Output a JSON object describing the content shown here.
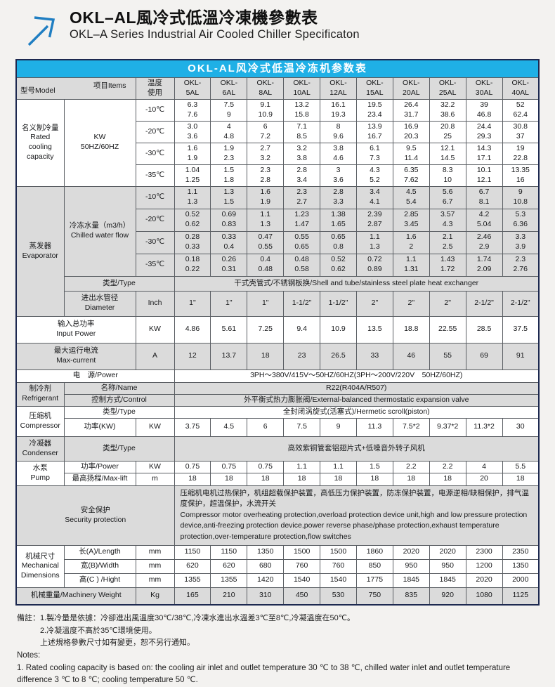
{
  "header": {
    "title_zh": "OKL–AL風冷式低溫冷凍機參數表",
    "title_en": "OKL–A Series Industrial Air Cooled Chiller Specificaton"
  },
  "colors": {
    "accent": "#1fb0e6",
    "band_gray": "#dbdbdb",
    "frame_navy": "#1d2950",
    "arrow_blue": "#1f7ec2"
  },
  "icons": {
    "logo": "arrow-up-right-icon"
  },
  "table": {
    "title": "OKL-AL风冷式低温冷冻机参数表",
    "corner": {
      "model": "型号Model",
      "items": "项目Items"
    },
    "temp_header": "温度\n使用",
    "models": [
      "OKL-\n5AL",
      "OKL-\n6AL",
      "OKL-\n8AL",
      "OKL-\n10AL",
      "OKL-\n12AL",
      "OKL-\n15AL",
      "OKL-\n20AL",
      "OKL-\n25AL",
      "OKL-\n30AL",
      "OKL-\n40AL"
    ],
    "rows": [
      {
        "h": 31,
        "band": "w",
        "cells": [
          {
            "t": "名义制冷量\nRated\ncooling\ncapacity",
            "r": 4,
            "n": "section-label"
          },
          {
            "t": "KW\n50HZ/60HZ",
            "r": 4,
            "n": "item-label"
          },
          {
            "t": "-10℃",
            "n": "temp-cell"
          },
          "6.3\n7.6",
          "7.5\n9",
          "9.1\n10.9",
          "13.2\n15.8",
          "16.1\n19.3",
          "19.5\n23.4",
          "26.4\n31.7",
          "32.2\n38.6",
          "39\n46.8",
          "52\n62.4"
        ]
      },
      {
        "h": 31,
        "band": "w",
        "cells": [
          {
            "t": "-20℃",
            "n": "temp-cell"
          },
          "3.0\n3.6",
          "4\n4.8",
          "6\n7.2",
          "7.1\n8.5",
          "8\n9.6",
          "13.9\n16.7",
          "16.9\n20.3",
          "20.8\n25",
          "24.4\n29.3",
          "30.8\n37"
        ]
      },
      {
        "h": 31,
        "band": "w",
        "cells": [
          {
            "t": "-30℃",
            "n": "temp-cell"
          },
          "1.6\n1.9",
          "1.9\n2.3",
          "2.7\n3.2",
          "3.2\n3.8",
          "3.8\n4.6",
          "6.1\n7.3",
          "9.5\n11.4",
          "12.1\n14.5",
          "14.3\n17.1",
          "19\n22.8"
        ]
      },
      {
        "h": 31,
        "band": "w",
        "cells": [
          {
            "t": "-35℃",
            "n": "temp-cell"
          },
          "1.04\n1.25",
          "1.5\n1.8",
          "2.3\n2.8",
          "2.8\n3.4",
          "3\n3.6",
          "4.3\n5.2",
          "6.35\n7.62",
          "8.3\n10",
          "10.1\n12.1",
          "13.35\n16"
        ]
      },
      {
        "h": 32,
        "band": "g",
        "cells": [
          {
            "t": "蒸发器\nEvaporator",
            "r": 6,
            "n": "section-label"
          },
          {
            "t": "冷冻水量（m3/h）\nChilled water flow",
            "r": 4,
            "n": "item-label"
          },
          {
            "t": "-10℃",
            "n": "temp-cell"
          },
          "1.1\n1.3",
          "1.3\n1.5",
          "1.6\n1.9",
          "2.3\n2.7",
          "2.8\n3.3",
          "3.4\n4.1",
          "4.5\n5.4",
          "5.6\n6.7",
          "6.7\n8.1",
          "9\n10.8"
        ]
      },
      {
        "h": 32,
        "band": "g",
        "cells": [
          {
            "t": "-20℃",
            "n": "temp-cell"
          },
          "0.52\n0.62",
          "0.69\n0.83",
          "1.1\n1.3",
          "1.23\n1.47",
          "1.38\n1.65",
          "2.39\n2.87",
          "2.85\n3.45",
          "3.57\n4.3",
          "4.2\n5.04",
          "5.3\n6.36"
        ]
      },
      {
        "h": 32,
        "band": "g",
        "cells": [
          {
            "t": "-30℃",
            "n": "temp-cell"
          },
          "0.28\n0.33",
          "0.33\n0.4",
          "0.47\n0.55",
          "0.55\n0.65",
          "0.65\n0.8",
          "1.1\n1.3",
          "1.6\n2",
          "2.1\n2.5",
          "2.46\n2.9",
          "3.3\n3.9"
        ]
      },
      {
        "h": 32,
        "band": "g",
        "cells": [
          {
            "t": "-35℃",
            "n": "temp-cell"
          },
          "0.18\n0.22",
          "0.26\n0.31",
          "0.4\n0.48",
          "0.48\n0.58",
          "0.52\n0.62",
          "0.72\n0.89",
          "1.1\n1.31",
          "1.43\n1.72",
          "1.74\n2.09",
          "2.3\n2.76"
        ]
      },
      {
        "h": 21,
        "band": "g",
        "cells": [
          {
            "t": "类型/Type",
            "c": 2,
            "n": "item-label"
          },
          {
            "t": "干式壳管式/不锈钢板换/Shell and tube/stainless steel plate heat exchanger",
            "c": 10,
            "n": "merged-value"
          }
        ]
      },
      {
        "h": 36,
        "band": "g",
        "cells": [
          {
            "t": "进出水管径\nDiameter",
            "n": "item-label"
          },
          {
            "t": "Inch",
            "n": "unit-cell"
          },
          "1\"",
          "1\"",
          "1\"",
          "1-1/2\"",
          "1-1/2\"",
          "2\"",
          "2\"",
          "2\"",
          "2-1/2\"",
          "2-1/2\""
        ]
      },
      {
        "h": 38,
        "band": "w",
        "cells": [
          {
            "t": "输入总功率\nInput Power",
            "c": 2,
            "n": "item-label"
          },
          {
            "t": "KW",
            "n": "unit-cell"
          },
          "4.86",
          "5.61",
          "7.25",
          "9.4",
          "10.9",
          "13.5",
          "18.8",
          "22.55",
          "28.5",
          "37.5"
        ]
      },
      {
        "h": 38,
        "band": "g",
        "cells": [
          {
            "t": "最大运行电流\nMax-current",
            "c": 2,
            "n": "item-label"
          },
          {
            "t": "A",
            "n": "unit-cell"
          },
          "12",
          "13.7",
          "18",
          "23",
          "26.5",
          "33",
          "46",
          "55",
          "69",
          "91"
        ]
      },
      {
        "h": 18,
        "band": "w",
        "cells": [
          {
            "t": "电　源/Power",
            "c": 3,
            "n": "item-label"
          },
          {
            "t": "3PH～380V/415V～50HZ/60HZ(3PH～200V/220V　50HZ/60HZ)",
            "c": 10,
            "n": "merged-value"
          }
        ]
      },
      {
        "h": 17,
        "band": "g",
        "cells": [
          {
            "t": "制冷剂\nRefrigerant",
            "r": 2,
            "n": "section-label"
          },
          {
            "t": "名称/Name",
            "c": 2,
            "n": "item-label"
          },
          {
            "t": "R22(R404A/R507)",
            "c": 10,
            "n": "merged-value"
          }
        ]
      },
      {
        "h": 17,
        "band": "g",
        "cells": [
          {
            "t": "控制方式/Control",
            "c": 2,
            "n": "item-label"
          },
          {
            "t": "外平衡式热力膨胀阀/External-balanced thermostatic expansion valve",
            "c": 10,
            "n": "merged-value"
          }
        ]
      },
      {
        "h": 17,
        "band": "w",
        "cells": [
          {
            "t": "压缩机\nCompressor",
            "r": 2,
            "n": "section-label"
          },
          {
            "t": "类型/Type",
            "c": 2,
            "n": "item-label"
          },
          {
            "t": "全封闭涡旋式(活塞式)/Hermetic scroll(piston)",
            "c": 10,
            "n": "merged-value"
          }
        ]
      },
      {
        "h": 26,
        "band": "w",
        "cells": [
          {
            "t": "功率(KW)",
            "n": "item-label"
          },
          {
            "t": "KW",
            "n": "unit-cell"
          },
          "3.75",
          "4.5",
          "6",
          "7.5",
          "9",
          "11.3",
          "7.5*2",
          "9.37*2",
          "11.3*2",
          "30"
        ]
      },
      {
        "h": 35,
        "band": "g",
        "cells": [
          {
            "t": "冷凝器\nCondenser",
            "n": "section-label"
          },
          {
            "t": "类型/Type",
            "c": 2,
            "n": "item-label"
          },
          {
            "t": "高效紫铜管套铝翅片式+低噪音外转子风机",
            "c": 10,
            "n": "merged-value"
          }
        ]
      },
      {
        "h": 17,
        "band": "w",
        "cells": [
          {
            "t": "水泵\nPump",
            "r": 2,
            "n": "section-label"
          },
          {
            "t": "功率/Power",
            "n": "item-label"
          },
          {
            "t": "KW",
            "n": "unit-cell"
          },
          "0.75",
          "0.75",
          "0.75",
          "1.1",
          "1.1",
          "1.5",
          "2.2",
          "2.2",
          "4",
          "5.5"
        ]
      },
      {
        "h": 18,
        "band": "w",
        "cells": [
          {
            "t": "最高扬程/Max-lift",
            "n": "item-label"
          },
          {
            "t": "m",
            "n": "unit-cell"
          },
          "18",
          "18",
          "18",
          "18",
          "18",
          "18",
          "18",
          "18",
          "20",
          "18"
        ]
      },
      {
        "h": 85,
        "band": "g",
        "cells": [
          {
            "t": "安全保护\nSecurity protection",
            "c": 3,
            "n": "section-label"
          },
          {
            "t": "压缩机电机过热保护，机组超载保护装置，高低压力保护装置，防冻保护装置，电源逆相/缺相保护，排气温度保护，超温保护，水流开关\nCompressor motor overheating protection,overload protection device unit,high and low pressure protection device,anti-freezing protection device,power reverse phase/phase protection,exhaust temperature protection,over-temperature protection,flow switches",
            "c": 10,
            "n": "merged-value",
            "cls": "left"
          }
        ]
      },
      {
        "h": 20,
        "band": "w",
        "cells": [
          {
            "t": "机械尺寸\nMechanical\nDimensions",
            "r": 3,
            "n": "section-label"
          },
          {
            "t": "长(A)/Length",
            "n": "item-label"
          },
          {
            "t": "mm",
            "n": "unit-cell"
          },
          "1150",
          "1150",
          "1350",
          "1500",
          "1500",
          "1860",
          "2020",
          "2020",
          "2300",
          "2350"
        ]
      },
      {
        "h": 20,
        "band": "w",
        "cells": [
          {
            "t": "宽(B)/Width",
            "n": "item-label"
          },
          {
            "t": "mm",
            "n": "unit-cell"
          },
          "620",
          "620",
          "680",
          "760",
          "760",
          "850",
          "950",
          "950",
          "1200",
          "1350"
        ]
      },
      {
        "h": 20,
        "band": "w",
        "cells": [
          {
            "t": "高(C ) /Hight",
            "n": "item-label"
          },
          {
            "t": "mm",
            "n": "unit-cell"
          },
          "1355",
          "1355",
          "1420",
          "1540",
          "1540",
          "1775",
          "1845",
          "1845",
          "2020",
          "2000"
        ]
      },
      {
        "h": 25,
        "band": "g",
        "cells": [
          {
            "t": "机械重量/Machinery Weight",
            "c": 2,
            "n": "item-label"
          },
          {
            "t": "Kg",
            "n": "unit-cell"
          },
          "165",
          "210",
          "310",
          "450",
          "530",
          "750",
          "835",
          "920",
          "1080",
          "1125"
        ]
      }
    ]
  },
  "notes": {
    "lines": [
      {
        "t": "備註：1.製冷量是依據：冷卻進出風溫度30℃/38℃,冷凍水進出水溫差3℃至8℃,冷凝溫度在50℃。",
        "cls": "zh"
      },
      {
        "t": "2.冷凝溫度不高於35℃環境使用。",
        "cls": "zh indent"
      },
      {
        "t": "上述規格參數尺寸如有變更，恕不另行通知。",
        "cls": "zh indent"
      },
      {
        "t": "Notes:",
        "cls": "en"
      },
      {
        "t": "1. Rated cooling capacity is based on: the cooling air inlet and outlet temperature 30 ℃ to 38 ℃, chilled water inlet and outlet temperature difference 3 ℃ to 8 ℃; cooling temperature 50 ℃.",
        "cls": "en"
      }
    ]
  }
}
